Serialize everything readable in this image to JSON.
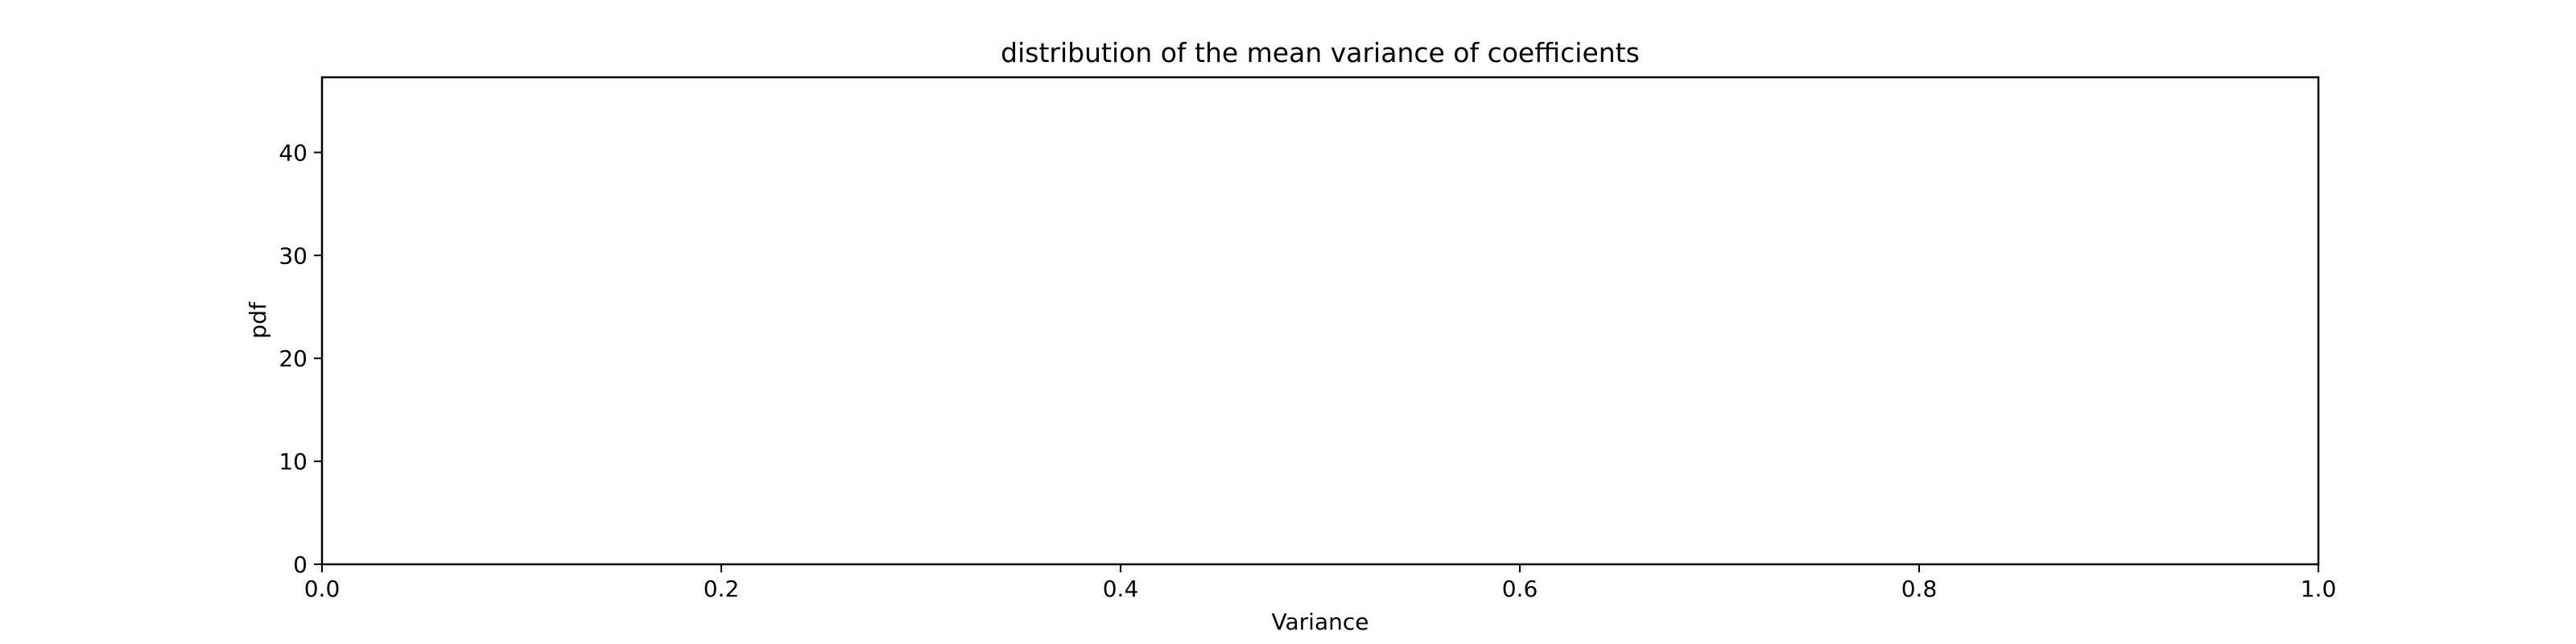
{
  "chart_data": {
    "type": "line",
    "title": "distribution of the mean variance of coefficients",
    "xlabel": "Variance",
    "ylabel": "pdf",
    "xlim": [
      0.0,
      1.0
    ],
    "ylim": [
      0,
      47.3
    ],
    "x_ticks": [
      0.0,
      0.2,
      0.4,
      0.6,
      0.8,
      1.0
    ],
    "x_tick_labels": [
      "0.0",
      "0.2",
      "0.4",
      "0.6",
      "0.8",
      "1.0"
    ],
    "y_ticks": [
      0,
      10,
      20,
      30,
      40
    ],
    "y_tick_labels": [
      "0",
      "10",
      "20",
      "30",
      "40"
    ],
    "grid": false,
    "series": []
  },
  "colors": {
    "background": "#ffffff",
    "axes": "#000000",
    "text": "#000000"
  }
}
